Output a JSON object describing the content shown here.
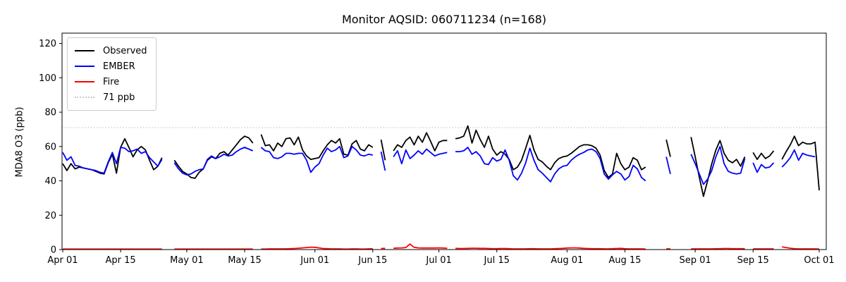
{
  "chart_data": {
    "type": "line",
    "title": "Monitor AQSID: 060711234 (n=168)",
    "ylabel": "MDA8 O3 (ppb)",
    "xlabel": "",
    "ylim": [
      0,
      126
    ],
    "x_start": "Apr 01",
    "x_end": "Oct 01",
    "grid": false,
    "legend_position": "upper left",
    "y_ticks": [
      0,
      20,
      40,
      60,
      80,
      100,
      120
    ],
    "x_ticks": [
      {
        "label": "Apr 01",
        "day": 0
      },
      {
        "label": "Apr 15",
        "day": 14
      },
      {
        "label": "May 01",
        "day": 30
      },
      {
        "label": "May 15",
        "day": 44
      },
      {
        "label": "Jun 01",
        "day": 61
      },
      {
        "label": "Jun 15",
        "day": 75
      },
      {
        "label": "Jul 01",
        "day": 91
      },
      {
        "label": "Jul 15",
        "day": 105
      },
      {
        "label": "Aug 01",
        "day": 122
      },
      {
        "label": "Aug 15",
        "day": 136
      },
      {
        "label": "Sep 01",
        "day": 153
      },
      {
        "label": "Sep 15",
        "day": 167
      },
      {
        "label": "Oct 01",
        "day": 183
      }
    ],
    "threshold": {
      "label": "71 ppb",
      "value": 71,
      "color": "#c8c8c8"
    },
    "legend": [
      {
        "label": "Observed",
        "color": "#000000",
        "style": "solid"
      },
      {
        "label": "EMBER",
        "color": "#0000ff",
        "style": "solid"
      },
      {
        "label": "Fire",
        "color": "#ff0000",
        "style": "solid"
      },
      {
        "label": "71 ppb",
        "color": "#c8c8c8",
        "style": "dotted"
      }
    ],
    "series": [
      {
        "name": "Observed",
        "color": "#000000",
        "values": [
          50,
          46,
          50,
          47,
          48,
          47.5,
          47,
          46.5,
          45.5,
          44.5,
          44,
          50.5,
          55.5,
          44.5,
          59.5,
          64.5,
          59.5,
          54,
          58,
          60,
          58,
          52,
          46.5,
          48.5,
          53.5,
          null,
          null,
          52,
          48.5,
          45.5,
          44,
          42,
          41.5,
          45,
          47,
          52,
          54,
          53,
          56,
          57,
          55,
          58,
          61,
          64,
          66,
          65,
          62,
          null,
          67,
          60.5,
          61,
          57.5,
          62,
          60,
          64.5,
          65,
          61,
          65.5,
          58,
          54.5,
          52.5,
          53,
          53.5,
          57.5,
          61,
          63.5,
          62,
          64.5,
          55.5,
          55,
          61.5,
          63.5,
          58.5,
          57.5,
          61,
          59.5,
          null,
          64,
          52,
          null,
          57.5,
          61,
          59.5,
          63.5,
          65.5,
          61,
          66,
          62.5,
          68,
          63,
          57.5,
          62.5,
          63.5,
          63.5,
          null,
          64.5,
          65,
          66,
          72,
          62,
          69.5,
          64,
          59.5,
          66,
          58.5,
          55,
          57,
          55.5,
          52.5,
          46.5,
          48,
          52,
          59,
          66.5,
          58,
          52.5,
          51,
          48.5,
          46.5,
          50.5,
          53,
          54,
          54.5,
          56,
          58,
          60,
          61,
          61,
          60.5,
          59,
          55,
          46,
          42,
          44,
          56,
          50,
          46.5,
          48,
          53.5,
          52,
          46.5,
          48,
          null,
          null,
          null,
          null,
          64,
          54,
          null,
          null,
          null,
          null,
          65.5,
          54,
          42,
          31,
          40,
          50,
          58,
          63.5,
          56,
          52,
          50.5,
          52.5,
          48.5,
          54,
          null,
          56.5,
          52.5,
          56,
          53,
          54.5,
          57.5,
          null,
          52.5,
          57,
          61,
          66,
          60.5,
          62.5,
          61.5,
          61.5,
          62.5,
          34.5
        ]
      },
      {
        "name": "EMBER",
        "color": "#0000ff",
        "values": [
          56.5,
          52,
          54,
          49,
          48.5,
          47.5,
          47,
          46.5,
          46,
          45,
          44.5,
          51,
          56.5,
          50,
          59.5,
          59,
          57,
          57.5,
          58.5,
          56,
          57,
          53.5,
          51,
          48.5,
          52.5,
          null,
          null,
          50.5,
          47,
          44.5,
          43.5,
          44,
          45.5,
          46.5,
          47,
          52.5,
          54.5,
          53,
          54,
          55.5,
          54.5,
          55,
          57,
          58.5,
          59.5,
          58.5,
          57.5,
          null,
          59.5,
          57.5,
          57,
          53.5,
          53,
          54,
          56,
          56,
          55.5,
          56,
          56,
          52,
          45,
          48,
          50,
          55,
          59,
          57,
          58,
          60,
          53.5,
          54.5,
          60,
          58,
          55,
          54.5,
          55.5,
          55,
          null,
          57,
          46,
          null,
          54,
          57.5,
          50,
          58,
          53,
          55,
          57.5,
          55.5,
          58.5,
          56.5,
          54.5,
          55.5,
          56,
          56.5,
          null,
          57,
          57,
          57.5,
          59.5,
          55.5,
          57,
          54.5,
          50,
          49.5,
          53.5,
          51.5,
          52.5,
          58,
          52,
          43,
          40.5,
          44.5,
          50.5,
          59,
          52,
          46.5,
          44.5,
          42,
          39.5,
          44,
          47,
          48.5,
          49,
          52,
          54,
          55.5,
          56.5,
          58,
          58.5,
          57,
          53,
          44,
          41,
          43.5,
          45.5,
          44,
          40.5,
          42.5,
          49,
          47,
          42,
          40,
          null,
          null,
          null,
          null,
          54,
          44,
          null,
          null,
          null,
          null,
          55.5,
          50,
          44,
          38,
          41,
          46,
          54,
          60,
          50,
          45.5,
          44.5,
          44,
          44.5,
          53,
          null,
          50.5,
          45,
          49.5,
          47.5,
          48,
          50.5,
          null,
          48,
          50.5,
          53.5,
          58,
          52,
          56,
          55,
          54.5,
          54,
          null
        ]
      },
      {
        "name": "Fire",
        "color": "#ff0000",
        "values": [
          0.3,
          0.3,
          0.3,
          0.3,
          0.3,
          0.3,
          0.3,
          0.3,
          0.3,
          0.3,
          0.3,
          0.3,
          0.3,
          0.3,
          0.3,
          0.3,
          0.3,
          0.3,
          0.3,
          0.3,
          0.3,
          0.3,
          0.3,
          0.3,
          0.3,
          null,
          null,
          0.3,
          0.3,
          0.3,
          0.3,
          0.3,
          0.3,
          0.3,
          0.3,
          0.3,
          0.3,
          0.3,
          0.3,
          0.3,
          0.3,
          0.3,
          0.3,
          0.3,
          0.3,
          0.3,
          0.3,
          null,
          0.3,
          0.3,
          0.4,
          0.4,
          0.4,
          0.4,
          0.4,
          0.5,
          0.6,
          0.8,
          1.0,
          1.2,
          1.4,
          1.3,
          1.0,
          0.6,
          0.5,
          0.4,
          0.4,
          0.4,
          0.3,
          0.3,
          0.4,
          0.4,
          0.3,
          0.3,
          0.4,
          0.5,
          null,
          0.6,
          0.7,
          null,
          0.8,
          0.9,
          1.0,
          1.2,
          3.2,
          1.3,
          1.0,
          0.9,
          0.9,
          0.9,
          0.9,
          1.0,
          0.9,
          0.8,
          null,
          0.7,
          0.6,
          0.6,
          0.7,
          0.8,
          0.8,
          0.7,
          0.7,
          0.6,
          0.5,
          0.5,
          0.6,
          0.6,
          0.5,
          0.4,
          0.4,
          0.4,
          0.4,
          0.5,
          0.5,
          0.4,
          0.4,
          0.4,
          0.4,
          0.5,
          0.6,
          0.7,
          0.9,
          1.0,
          1.0,
          0.9,
          0.7,
          0.6,
          0.5,
          0.5,
          0.5,
          0.4,
          0.4,
          0.5,
          0.6,
          0.7,
          0.5,
          0.4,
          0.4,
          0.4,
          0.4,
          0.3,
          null,
          null,
          null,
          null,
          0.4,
          0.4,
          null,
          null,
          null,
          null,
          0.4,
          0.4,
          0.4,
          0.4,
          0.4,
          0.4,
          0.5,
          0.5,
          0.6,
          0.6,
          0.5,
          0.5,
          0.5,
          0.5,
          null,
          0.4,
          0.4,
          0.4,
          0.4,
          0.4,
          0.4,
          null,
          1.6,
          1.2,
          0.8,
          0.5,
          0.4,
          0.4,
          0.4,
          0.4,
          0.4,
          0.3
        ]
      }
    ]
  }
}
